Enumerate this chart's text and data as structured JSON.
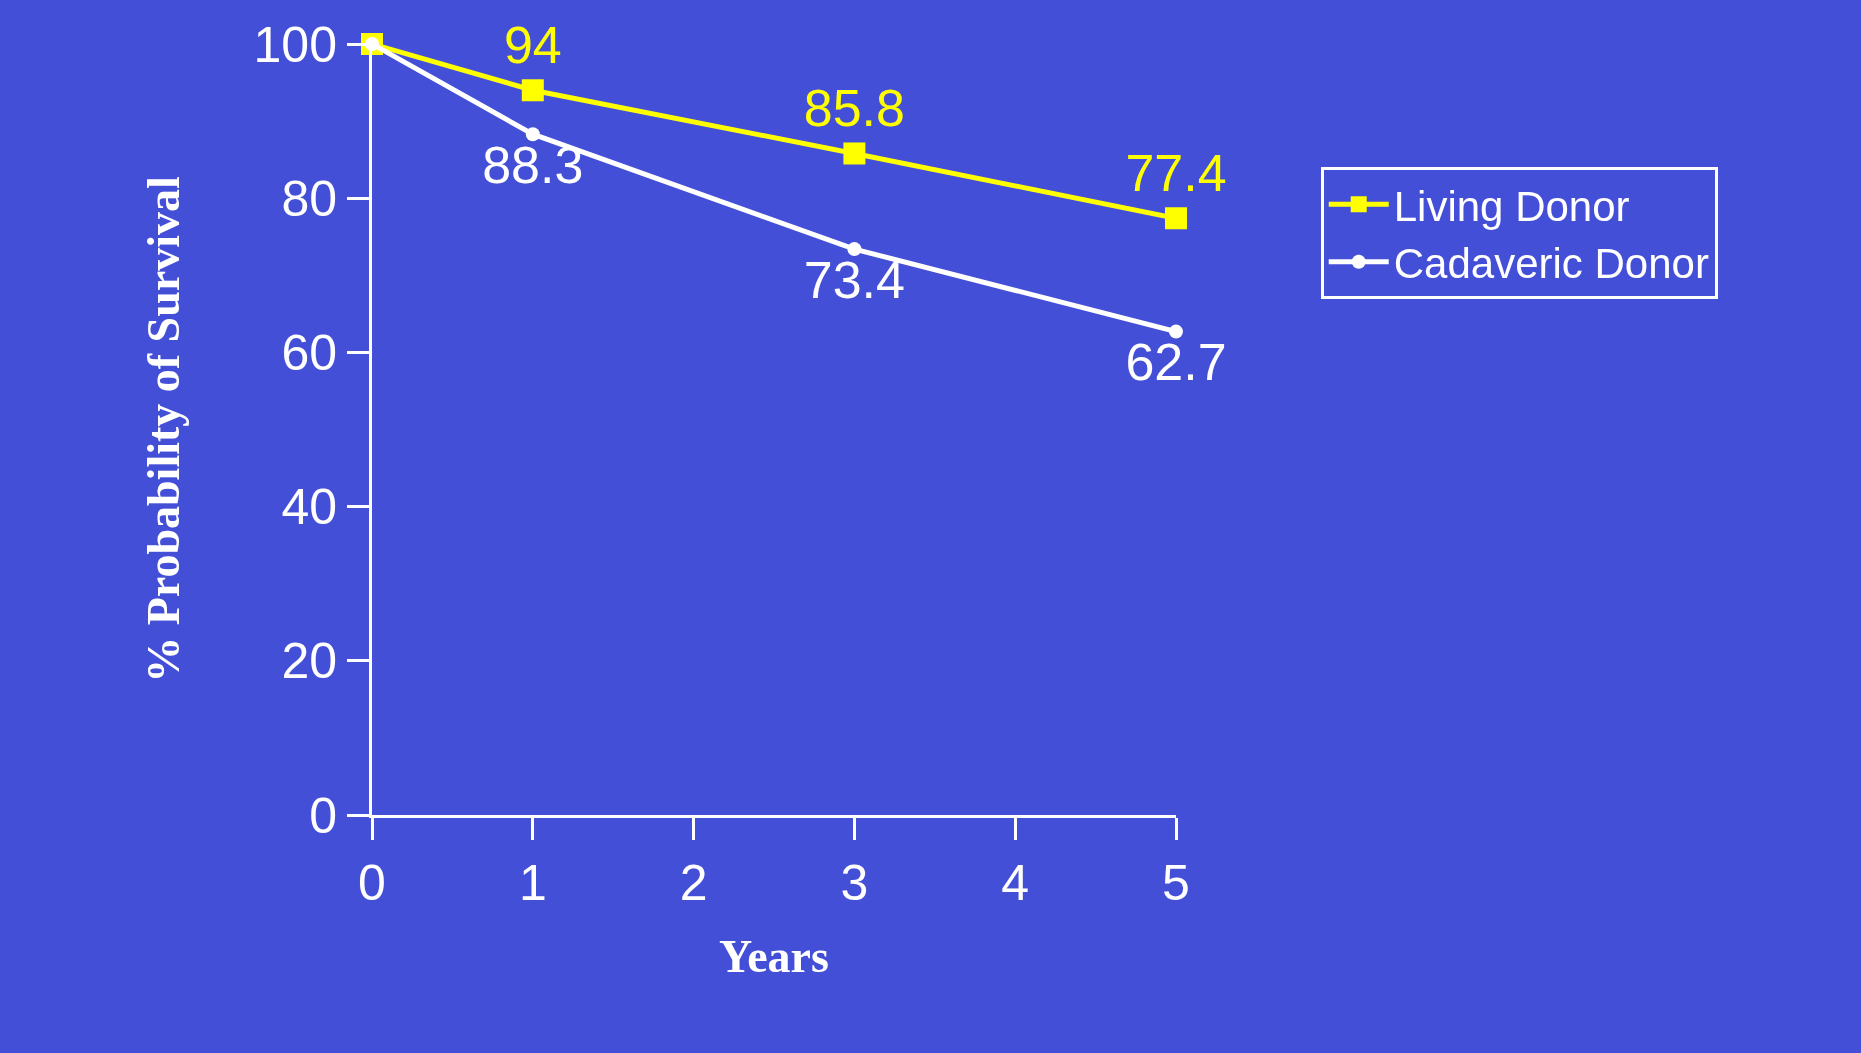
{
  "chart_data": {
    "type": "line",
    "xlabel": "Years",
    "ylabel": "% Probability of Survival",
    "x": [
      0,
      1,
      3,
      5
    ],
    "series": [
      {
        "name": "Living Donor",
        "color": "#ffff00",
        "marker": "square",
        "values": [
          100,
          94,
          85.8,
          77.4
        ],
        "value_labels": [
          null,
          "94",
          "85.8",
          "77.4"
        ]
      },
      {
        "name": "Cadaveric Donor",
        "color": "#ffffff",
        "marker": "circle",
        "values": [
          100,
          88.3,
          73.4,
          62.7
        ],
        "value_labels": [
          null,
          "88.3",
          "73.4",
          "62.7"
        ]
      }
    ],
    "xlim": [
      0,
      5
    ],
    "xticks": [
      0,
      1,
      2,
      3,
      4,
      5
    ],
    "ylim": [
      0,
      100
    ],
    "yticks": [
      0,
      20,
      40,
      60,
      80,
      100
    ],
    "grid": false,
    "legend": "right",
    "line_style": "solid"
  }
}
